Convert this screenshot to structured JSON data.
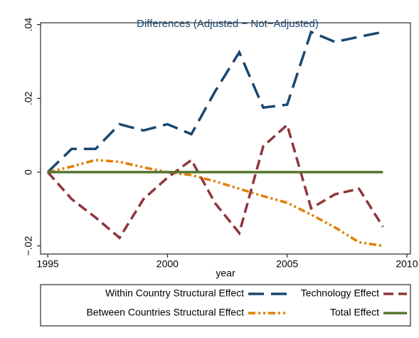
{
  "chart_data": {
    "type": "line",
    "title": "Differences (Adjusted − Not−Adjusted)",
    "x_label": "year",
    "x": [
      1995,
      1996,
      1997,
      1998,
      1999,
      2000,
      2001,
      2002,
      2003,
      2004,
      2005,
      2006,
      2007,
      2008,
      2009
    ],
    "series": [
      {
        "name": "Within Country Structural Effect",
        "color": "#1a476f",
        "values": [
          0,
          0.0063,
          0.0063,
          0.013,
          0.0113,
          0.013,
          0.0103,
          0.022,
          0.0325,
          0.0175,
          0.0183,
          0.038,
          0.0353,
          0.0367,
          0.038
        ]
      },
      {
        "name": "Technology Effect",
        "color": "#90353b",
        "values": [
          0,
          -0.0073,
          -0.0123,
          -0.0178,
          -0.0073,
          -0.0015,
          0.0033,
          -0.0085,
          -0.0165,
          0.007,
          0.0128,
          -0.0098,
          -0.006,
          -0.0045,
          -0.0148
        ]
      },
      {
        "name": "Between Countries Structural Effect",
        "color": "#e37e00",
        "values": [
          0,
          0.0015,
          0.0033,
          0.0028,
          0.0013,
          0,
          -0.0008,
          -0.0025,
          -0.0045,
          -0.0065,
          -0.0083,
          -0.0115,
          -0.015,
          -0.019,
          -0.02
        ]
      },
      {
        "name": "Total Effect",
        "color": "#55752f",
        "values": [
          0,
          0,
          0,
          0,
          0,
          0,
          0,
          0,
          0,
          0,
          0,
          0,
          0,
          0,
          0
        ]
      }
    ],
    "xlim": [
      1994.7,
      2010.15
    ],
    "xticks": [
      1995,
      2000,
      2005,
      2010
    ],
    "ylim": [
      -0.0222,
      0.0405
    ],
    "yticks": [
      {
        "value": -0.02,
        "label": "−.02"
      },
      0,
      {
        "value": 0.02,
        "label": ".02"
      },
      {
        "value": 0.04,
        "label": ".04"
      }
    ],
    "grid": false,
    "legend": "bottom"
  }
}
